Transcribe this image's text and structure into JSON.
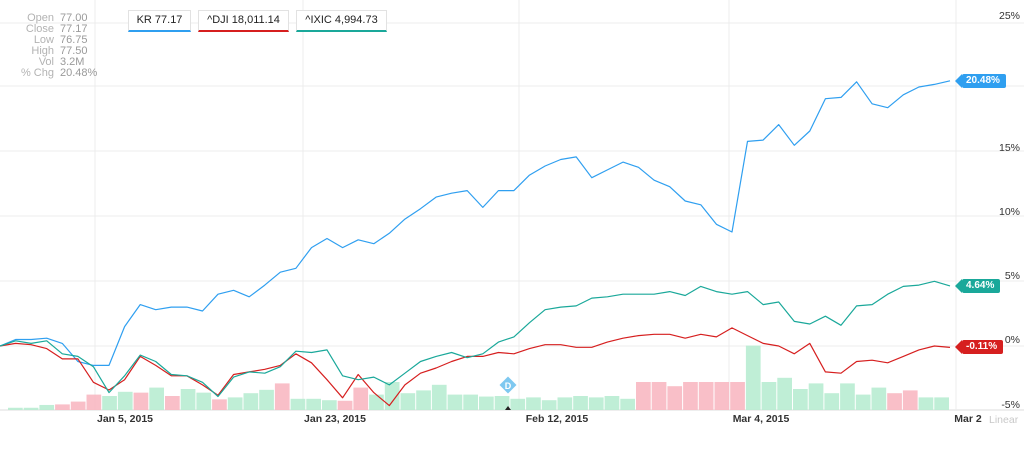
{
  "info_panel": [
    {
      "label": "Open",
      "value": "77.00"
    },
    {
      "label": "Close",
      "value": "77.17"
    },
    {
      "label": "Low",
      "value": "76.75"
    },
    {
      "label": "High",
      "value": "77.50"
    },
    {
      "label": "Vol",
      "value": "3.2M"
    },
    {
      "label": "% Chg",
      "value": "20.48%"
    }
  ],
  "legend": [
    {
      "label": "KR 77.17",
      "color": "#2f9ff0"
    },
    {
      "label": "^DJI 18,011.14",
      "color": "#d61f1f"
    },
    {
      "label": "^IXIC 4,994.73",
      "color": "#1aa89a"
    }
  ],
  "scale_label": "Linear",
  "chart_data": {
    "type": "line",
    "x_labels": [
      "Jan 5, 2015",
      "Jan 23, 2015",
      "Feb 12, 2015",
      "Mar 4, 2015",
      "Mar 2"
    ],
    "y_ticks": [
      "25%",
      "15%",
      "10%",
      "5%",
      "0%",
      "-5%"
    ],
    "ylim": [
      -5,
      25
    ],
    "badges": [
      {
        "series": "KR",
        "text": "20.48%",
        "value": 20.48,
        "color": "#2f9ff0"
      },
      {
        "series": "^IXIC",
        "text": "4.64%",
        "value": 4.64,
        "color": "#1aa89a"
      },
      {
        "series": "^DJI",
        "text": "-0.11%",
        "value": -0.11,
        "color": "#d61f1f"
      }
    ],
    "event_marker": "D",
    "series": [
      {
        "name": "KR",
        "color": "#2f9ff0",
        "values": [
          0,
          0.5,
          0.5,
          0.6,
          0.2,
          -1.2,
          -1.5,
          -1.5,
          1.5,
          3.2,
          2.8,
          3.0,
          3.0,
          2.7,
          4.0,
          4.3,
          3.8,
          4.7,
          5.7,
          6.0,
          7.6,
          8.3,
          7.6,
          8.2,
          7.9,
          8.7,
          9.8,
          10.6,
          11.5,
          11.8,
          12.0,
          10.7,
          12.0,
          12.0,
          13.2,
          13.9,
          14.4,
          14.6,
          13.0,
          13.6,
          14.2,
          13.8,
          12.8,
          12.3,
          11.2,
          10.9,
          9.4,
          8.8,
          15.8,
          15.9,
          17.1,
          15.5,
          16.6,
          19.1,
          19.2,
          20.4,
          18.7,
          18.4,
          19.4,
          20.0,
          20.2,
          20.48
        ]
      },
      {
        "name": "^DJI",
        "color": "#d61f1f",
        "values": [
          0,
          0.2,
          0.1,
          -0.2,
          -1.0,
          -1.0,
          -2.8,
          -3.4,
          -2.6,
          -0.8,
          -1.5,
          -2.3,
          -2.3,
          -3.0,
          -3.8,
          -2.2,
          -2.0,
          -1.8,
          -1.5,
          -0.6,
          -1.3,
          -2.6,
          -4.0,
          -2.2,
          -3.6,
          -4.6,
          -3.0,
          -2.1,
          -1.7,
          -1.2,
          -0.8,
          -0.8,
          -0.5,
          -0.6,
          -0.2,
          0.1,
          0.1,
          -0.1,
          -0.1,
          0.3,
          0.6,
          0.8,
          0.9,
          0.9,
          0.6,
          0.9,
          0.7,
          1.4,
          0.8,
          0.2,
          0.0,
          -0.6,
          0.2,
          -2.0,
          -2.1,
          -1.2,
          -1.1,
          -1.3,
          -0.8,
          -0.3,
          0.0,
          -0.11
        ]
      },
      {
        "name": "^IXIC",
        "color": "#1aa89a",
        "values": [
          0,
          0.4,
          0.2,
          0.4,
          -0.6,
          -0.8,
          -1.6,
          -3.6,
          -2.3,
          -0.7,
          -1.2,
          -2.2,
          -2.3,
          -2.8,
          -3.9,
          -2.4,
          -2.0,
          -2.1,
          -1.6,
          -0.4,
          -0.5,
          -0.3,
          -2.3,
          -2.6,
          -2.4,
          -3.0,
          -2.1,
          -1.2,
          -0.8,
          -0.5,
          -0.9,
          -0.6,
          0.3,
          0.7,
          1.8,
          2.8,
          3.0,
          3.1,
          3.7,
          3.8,
          4.0,
          4.0,
          4.0,
          4.2,
          3.9,
          4.6,
          4.2,
          4.0,
          4.2,
          3.2,
          3.4,
          1.9,
          1.7,
          2.3,
          1.6,
          3.1,
          3.2,
          4.0,
          4.6,
          4.7,
          5.0,
          4.64
        ]
      }
    ],
    "volume": {
      "relative_values": [
        0.08,
        0.08,
        0.18,
        0.2,
        0.3,
        0.55,
        0.5,
        0.65,
        0.62,
        0.8,
        0.5,
        0.75,
        0.62,
        0.38,
        0.45,
        0.6,
        0.72,
        0.95,
        0.4,
        0.4,
        0.35,
        0.33,
        0.8,
        0.55,
        1.0,
        0.6,
        0.7,
        0.9,
        0.55,
        0.55,
        0.48,
        0.5,
        0.4,
        0.45,
        0.35,
        0.45,
        0.5,
        0.45,
        0.5,
        0.4,
        1.0,
        1.0,
        0.85,
        1.0,
        1.0,
        1.0,
        1.0,
        2.3,
        1.0,
        1.15,
        0.75,
        0.95,
        0.6,
        0.95,
        0.55,
        0.8,
        0.6,
        0.7,
        0.45,
        0.45
      ],
      "up_down": [
        1,
        1,
        1,
        0,
        0,
        0,
        1,
        1,
        0,
        1,
        0,
        1,
        1,
        0,
        1,
        1,
        1,
        0,
        1,
        1,
        1,
        0,
        0,
        1,
        1,
        1,
        1,
        1,
        1,
        1,
        1,
        1,
        1,
        1,
        1,
        1,
        1,
        1,
        1,
        1,
        0,
        0,
        0,
        0,
        0,
        0,
        0,
        1,
        1,
        1,
        1,
        1,
        1,
        1,
        1,
        1,
        0,
        0,
        1,
        1
      ]
    }
  }
}
